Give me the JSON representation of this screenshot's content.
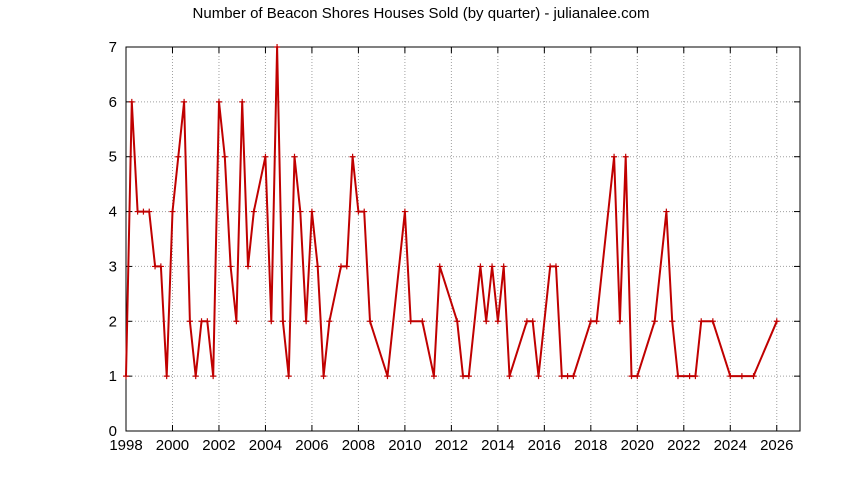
{
  "chart_data": {
    "type": "line",
    "title": "Number of Beacon Shores Houses Sold (by quarter) - julianalee.com",
    "xlabel": "",
    "ylabel": "",
    "xlim": [
      1998,
      2027
    ],
    "ylim": [
      0,
      7
    ],
    "xticks": [
      1998,
      2000,
      2002,
      2004,
      2006,
      2008,
      2010,
      2012,
      2014,
      2016,
      2018,
      2020,
      2022,
      2024,
      2026
    ],
    "yticks": [
      0,
      1,
      2,
      3,
      4,
      5,
      6,
      7
    ],
    "grid": true,
    "legend": "none",
    "colors": {
      "series": "#c00000"
    },
    "series": [
      {
        "x": [
          1998.0,
          1998.25,
          1998.5,
          1998.75,
          1999.0,
          1999.25,
          1999.5,
          1999.75,
          2000.0,
          2000.25,
          2000.5,
          2000.75,
          2001.0,
          2001.25,
          2001.5,
          2001.75,
          2002.0,
          2002.25,
          2002.5,
          2002.75,
          2003.0,
          2003.25,
          2003.5,
          2004.0,
          2004.25,
          2004.5,
          2004.75,
          2005.0,
          2005.25,
          2005.5,
          2005.75,
          2006.0,
          2006.25,
          2006.5,
          2006.75,
          2007.25,
          2007.5,
          2007.75,
          2008.0,
          2008.25,
          2008.5,
          2009.25,
          2010.0,
          2010.25,
          2010.75,
          2011.25,
          2011.5,
          2012.25,
          2012.5,
          2012.75,
          2013.25,
          2013.5,
          2013.75,
          2014.0,
          2014.25,
          2014.5,
          2015.25,
          2015.5,
          2015.75,
          2016.25,
          2016.5,
          2016.75,
          2017.0,
          2017.25,
          2018.0,
          2018.25,
          2019.0,
          2019.25,
          2019.5,
          2019.75,
          2020.0,
          2020.75,
          2021.25,
          2021.5,
          2021.75,
          2022.25,
          2022.5,
          2022.75,
          2023.25,
          2024.0,
          2024.5,
          2025.0,
          2026.0
        ],
        "y": [
          1,
          6,
          4,
          4,
          4,
          3,
          3,
          1,
          4,
          5,
          6,
          2,
          1,
          2,
          2,
          1,
          6,
          5,
          3,
          2,
          6,
          3,
          4,
          5,
          2,
          7,
          2,
          1,
          5,
          4,
          2,
          4,
          3,
          1,
          2,
          3,
          3,
          5,
          4,
          4,
          2,
          1,
          4,
          2,
          2,
          1,
          3,
          2,
          1,
          1,
          3,
          2,
          3,
          2,
          3,
          1,
          2,
          2,
          1,
          3,
          3,
          1,
          1,
          1,
          2,
          2,
          5,
          2,
          5,
          1,
          1,
          2,
          4,
          2,
          1,
          1,
          1,
          2,
          2,
          1,
          1,
          1,
          2
        ]
      }
    ]
  }
}
